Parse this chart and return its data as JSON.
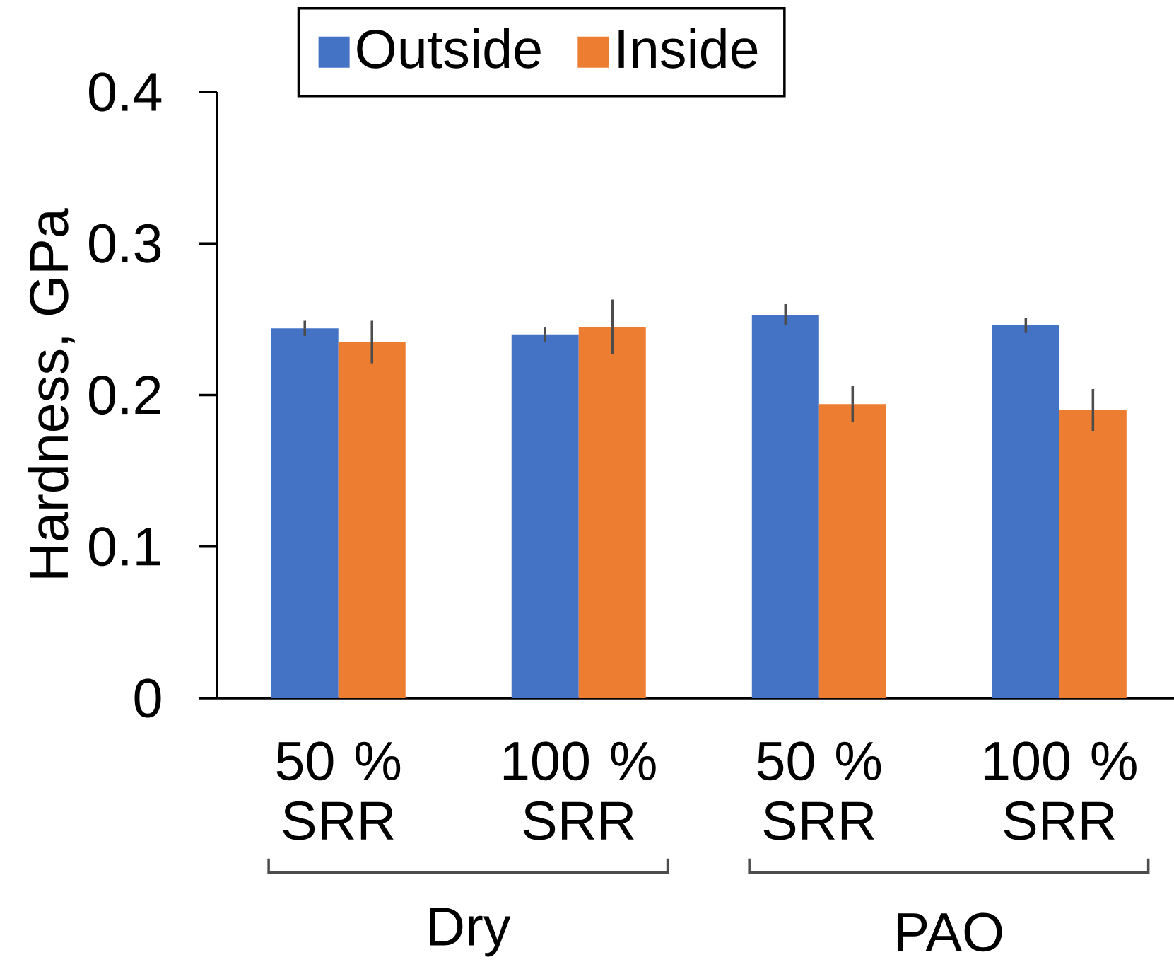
{
  "chart_data": {
    "type": "bar",
    "ylabel": "Hardness, GPa",
    "categories": [
      "50 % SRR",
      "100 % SRR",
      "50 % SRR",
      "100 % SRR"
    ],
    "series": [
      {
        "name": "Outside",
        "color": "#4472c4",
        "values": [
          0.244,
          0.24,
          0.253,
          0.246
        ],
        "errors": [
          0.005,
          0.005,
          0.007,
          0.005
        ]
      },
      {
        "name": "Inside",
        "color": "#ed7d31",
        "values": [
          0.235,
          0.245,
          0.194,
          0.19
        ],
        "errors": [
          0.014,
          0.018,
          0.012,
          0.014
        ]
      }
    ],
    "ylim": [
      0,
      0.4
    ],
    "yticks": [
      0,
      0.1,
      0.2,
      0.3,
      0.4
    ],
    "annotations": [
      "Dry",
      "PAO"
    ],
    "legend": "top",
    "grid": false
  }
}
